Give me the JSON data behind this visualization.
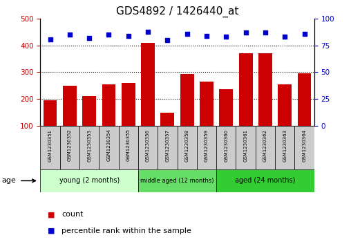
{
  "title": "GDS4892 / 1426440_at",
  "samples": [
    "GSM1230351",
    "GSM1230352",
    "GSM1230353",
    "GSM1230354",
    "GSM1230355",
    "GSM1230356",
    "GSM1230357",
    "GSM1230358",
    "GSM1230359",
    "GSM1230360",
    "GSM1230361",
    "GSM1230362",
    "GSM1230363",
    "GSM1230364"
  ],
  "counts": [
    195,
    250,
    210,
    255,
    260,
    410,
    148,
    292,
    265,
    235,
    370,
    372,
    255,
    297
  ],
  "percentiles": [
    81,
    85,
    82,
    85,
    84,
    88,
    80,
    86,
    84,
    83,
    87,
    87,
    83,
    86
  ],
  "groups": [
    {
      "label": "young (2 months)",
      "start": 0,
      "end": 5,
      "color": "#ccffcc"
    },
    {
      "label": "middle aged (12 months)",
      "start": 5,
      "end": 9,
      "color": "#66dd66"
    },
    {
      "label": "aged (24 months)",
      "start": 9,
      "end": 14,
      "color": "#33cc33"
    }
  ],
  "ylim_left": [
    100,
    500
  ],
  "ylim_right": [
    0,
    100
  ],
  "yticks_left": [
    100,
    200,
    300,
    400,
    500
  ],
  "yticks_right": [
    0,
    25,
    50,
    75,
    100
  ],
  "bar_color": "#CC0000",
  "dot_color": "#0000CC",
  "grid_color": "#000000",
  "background_color": "#ffffff",
  "title_fontsize": 11,
  "age_label": "age",
  "sample_box_color": "#cccccc",
  "legend_count": "count",
  "legend_pct": "percentile rank within the sample"
}
